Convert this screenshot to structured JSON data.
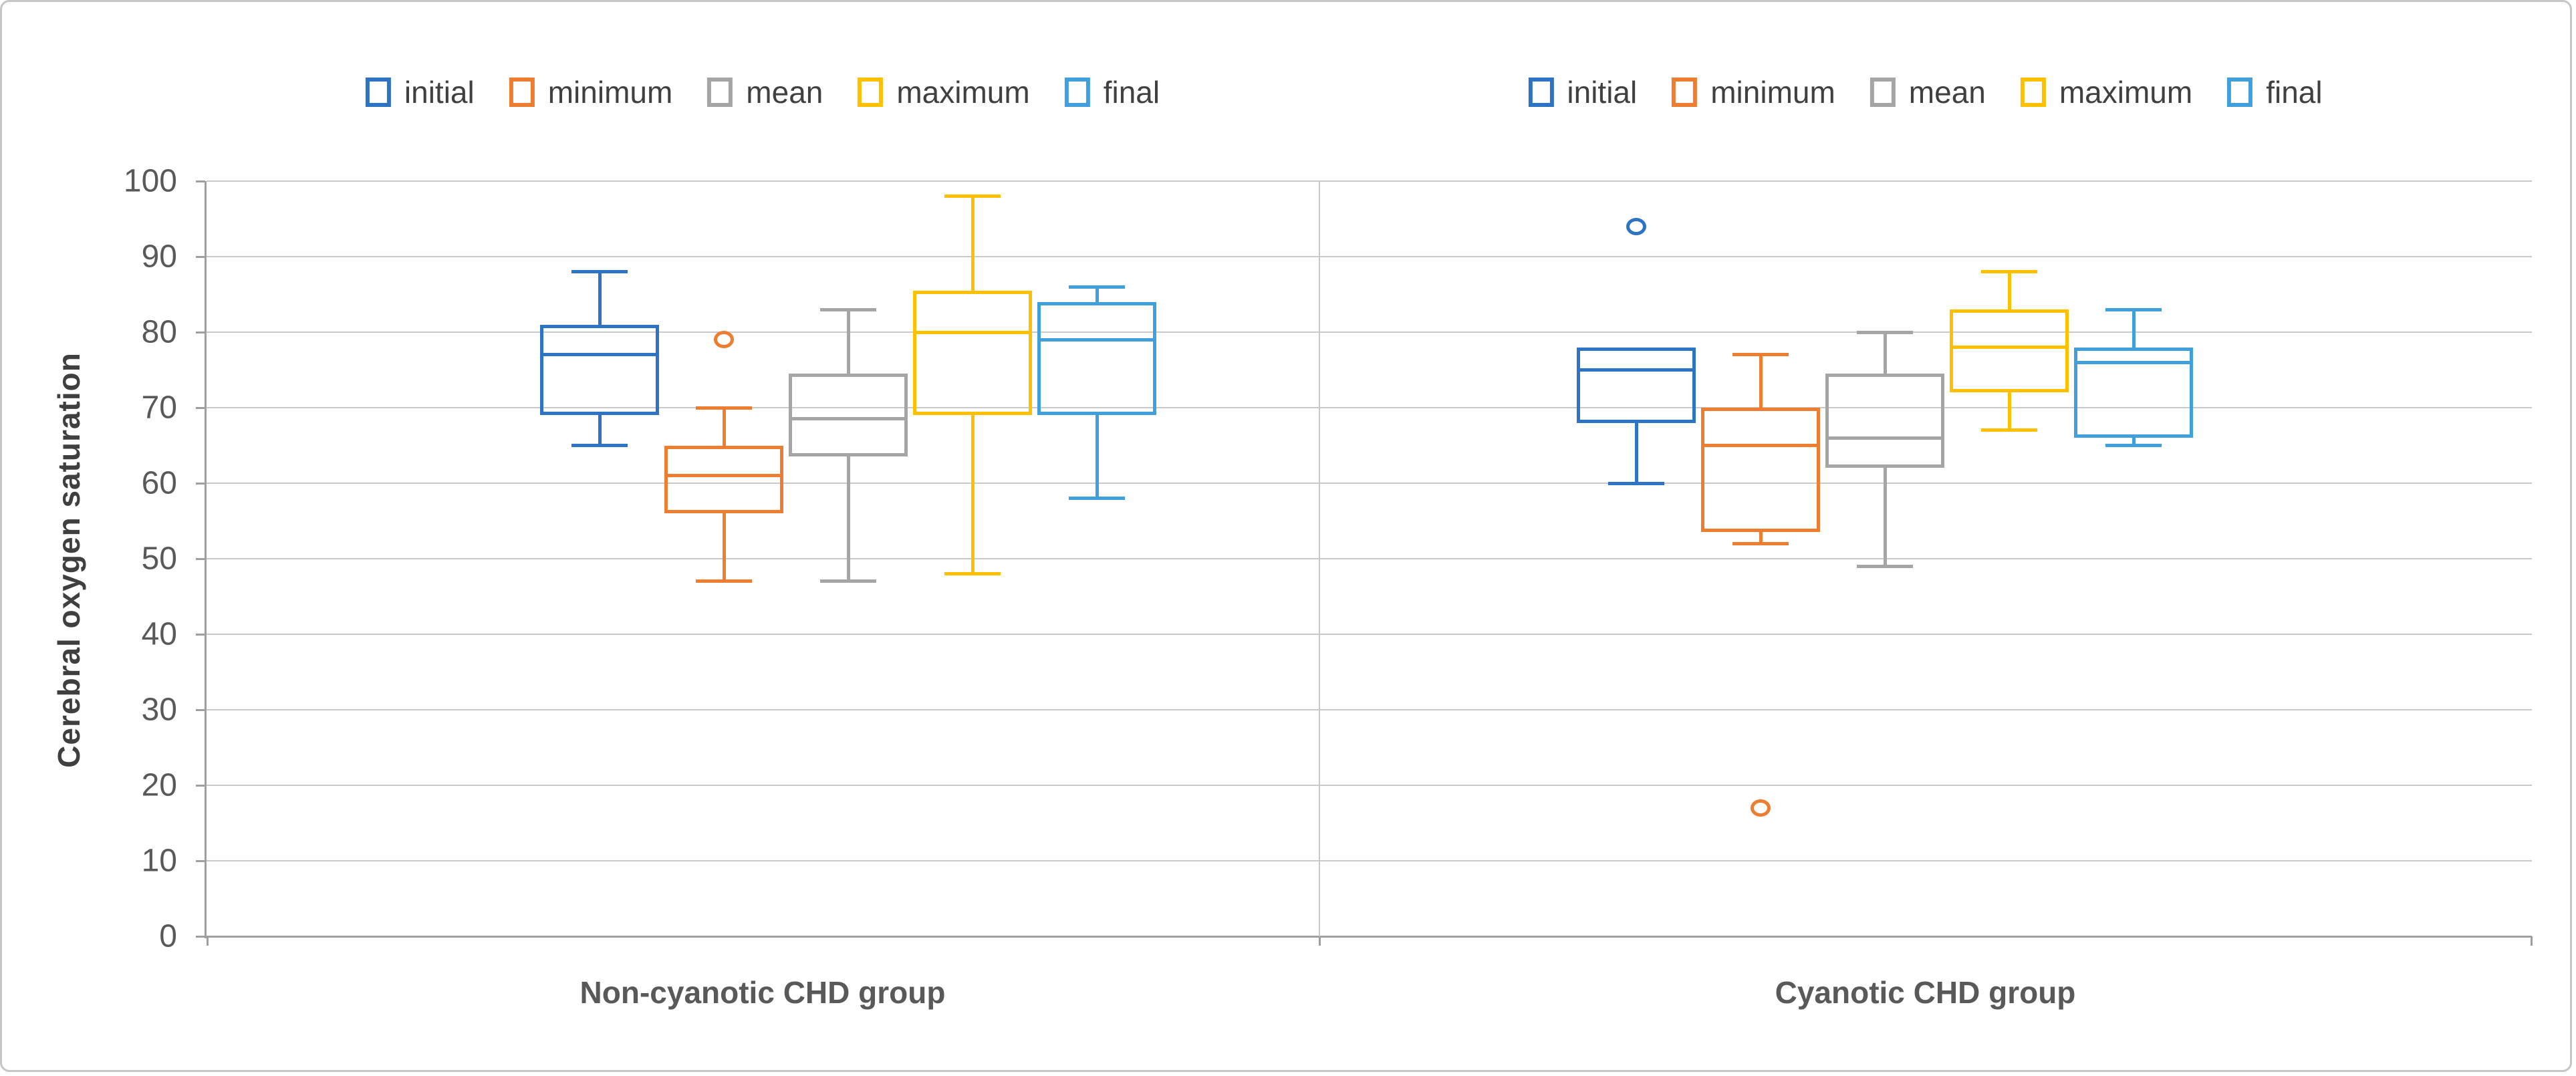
{
  "chart_data": {
    "type": "boxplot",
    "title": "",
    "ylabel": "Cerebral oxygen saturation",
    "xlabel": "",
    "ylim": [
      0,
      100
    ],
    "ytick_step": 10,
    "yticks": [
      0,
      10,
      20,
      30,
      40,
      50,
      60,
      70,
      80,
      90,
      100
    ],
    "grid": true,
    "legend_position": "top, repeated above each group",
    "series_names": [
      "initial",
      "minimum",
      "mean",
      "maximum",
      "final"
    ],
    "series_colors": [
      "#2e74c4",
      "#ed7d31",
      "#a5a5a5",
      "#ffc000",
      "#41a0dc"
    ],
    "groups": [
      {
        "label": "Non-cyanotic CHD group",
        "boxes": [
          {
            "series": "initial",
            "whisker_low": 65,
            "q1": 69,
            "median": 77,
            "q3": 81,
            "whisker_high": 88,
            "outliers": []
          },
          {
            "series": "minimum",
            "whisker_low": 47,
            "q1": 56,
            "median": 61,
            "q3": 65,
            "whisker_high": 70,
            "outliers": [
              79
            ]
          },
          {
            "series": "mean",
            "whisker_low": 47,
            "q1": 63.5,
            "median": 68.5,
            "q3": 74.5,
            "whisker_high": 83,
            "outliers": []
          },
          {
            "series": "maximum",
            "whisker_low": 48,
            "q1": 69,
            "median": 80,
            "q3": 85.5,
            "whisker_high": 98,
            "outliers": []
          },
          {
            "series": "final",
            "whisker_low": 58,
            "q1": 69,
            "median": 79,
            "q3": 84,
            "whisker_high": 86,
            "outliers": []
          }
        ]
      },
      {
        "label": "Cyanotic CHD group",
        "boxes": [
          {
            "series": "initial",
            "whisker_low": 60,
            "q1": 68,
            "median": 75,
            "q3": 78,
            "whisker_high": 78,
            "outliers": [
              94
            ]
          },
          {
            "series": "minimum",
            "whisker_low": 52,
            "q1": 53.5,
            "median": 65,
            "q3": 70,
            "whisker_high": 77,
            "outliers": [
              17
            ]
          },
          {
            "series": "mean",
            "whisker_low": 49,
            "q1": 62,
            "median": 66,
            "q3": 74.5,
            "whisker_high": 80,
            "outliers": []
          },
          {
            "series": "maximum",
            "whisker_low": 67,
            "q1": 72,
            "median": 78,
            "q3": 83,
            "whisker_high": 88,
            "outliers": []
          },
          {
            "series": "final",
            "whisker_low": 65,
            "q1": 66,
            "median": 76,
            "q3": 78,
            "whisker_high": 83,
            "outliers": []
          }
        ]
      }
    ],
    "colors": {
      "gridline": "#c9c9c9",
      "axis_line": "#9f9f9f",
      "tick_label": "#595959",
      "legend_text": "#404040",
      "group_label_text": "#595959",
      "figure_border": "#c6c6c6",
      "background": "#ffffff"
    }
  }
}
